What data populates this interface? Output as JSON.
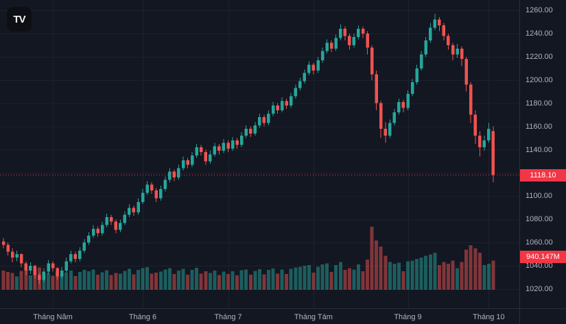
{
  "app": {
    "logo_text": "TV"
  },
  "axis": {
    "price_badge": "1118.10",
    "volume_badge": "940.147M",
    "price_labels": [
      "1260.00",
      "1240.00",
      "1220.00",
      "1200.00",
      "1180.00",
      "1160.00",
      "1140.00",
      "1100.00",
      "1080.00",
      "1060.00",
      "1040.00",
      "1020.00"
    ]
  },
  "chart_data": {
    "type": "candlestick",
    "title": "",
    "xlabel": "",
    "ylabel": "",
    "ylim": [
      1020,
      1260
    ],
    "grid_step": 20,
    "grid": true,
    "last_price": 1118.1,
    "last_volume_label": "940.147M",
    "x_ticks": [
      {
        "label": "Tháng Năm",
        "index": 11
      },
      {
        "label": "Tháng 6",
        "index": 31
      },
      {
        "label": "Tháng 7",
        "index": 50
      },
      {
        "label": "Tháng Tám",
        "index": 69
      },
      {
        "label": "Tháng 9",
        "index": 90
      },
      {
        "label": "Tháng 10",
        "index": 108
      }
    ],
    "colors": {
      "background": "#131722",
      "grid": "#1e222d",
      "axis_text": "#b2b5be",
      "up": "#26a69a",
      "down": "#ef5350",
      "vol_up": "rgba(38,166,154,0.5)",
      "vol_down": "rgba(239,83,80,0.5)",
      "last_price_line": "#f23645",
      "badge_bg": "#f23645"
    },
    "columns": [
      "open",
      "high",
      "low",
      "close",
      "volume_millions"
    ],
    "candles": [
      [
        1061,
        1064,
        1055,
        1058,
        620
      ],
      [
        1058,
        1060,
        1049,
        1052,
        580
      ],
      [
        1052,
        1055,
        1043,
        1047,
        540
      ],
      [
        1047,
        1053,
        1044,
        1050,
        430
      ],
      [
        1050,
        1051,
        1039,
        1042,
        610
      ],
      [
        1042,
        1044,
        1032,
        1036,
        650
      ],
      [
        1036,
        1043,
        1033,
        1040,
        470
      ],
      [
        1040,
        1041,
        1029,
        1032,
        690
      ],
      [
        1032,
        1034,
        1024,
        1028,
        720
      ],
      [
        1028,
        1038,
        1026,
        1035,
        510
      ],
      [
        1035,
        1045,
        1033,
        1042,
        540
      ],
      [
        1042,
        1044,
        1035,
        1038,
        460
      ],
      [
        1038,
        1039,
        1028,
        1031,
        590
      ],
      [
        1031,
        1039,
        1029,
        1036,
        480
      ],
      [
        1036,
        1047,
        1034,
        1044,
        560
      ],
      [
        1044,
        1053,
        1042,
        1050,
        620
      ],
      [
        1050,
        1052,
        1043,
        1046,
        450
      ],
      [
        1046,
        1056,
        1044,
        1053,
        580
      ],
      [
        1053,
        1063,
        1051,
        1060,
        640
      ],
      [
        1060,
        1069,
        1058,
        1066,
        600
      ],
      [
        1066,
        1075,
        1064,
        1072,
        660
      ],
      [
        1072,
        1074,
        1065,
        1068,
        490
      ],
      [
        1068,
        1078,
        1066,
        1075,
        570
      ],
      [
        1075,
        1085,
        1073,
        1082,
        630
      ],
      [
        1082,
        1084,
        1075,
        1078,
        480
      ],
      [
        1078,
        1080,
        1068,
        1071,
        550
      ],
      [
        1071,
        1080,
        1069,
        1077,
        520
      ],
      [
        1077,
        1087,
        1075,
        1084,
        610
      ],
      [
        1084,
        1093,
        1082,
        1090,
        680
      ],
      [
        1090,
        1092,
        1083,
        1086,
        500
      ],
      [
        1086,
        1098,
        1084,
        1095,
        640
      ],
      [
        1095,
        1106,
        1093,
        1103,
        700
      ],
      [
        1103,
        1113,
        1101,
        1110,
        730
      ],
      [
        1110,
        1112,
        1102,
        1105,
        520
      ],
      [
        1105,
        1107,
        1095,
        1098,
        560
      ],
      [
        1098,
        1109,
        1096,
        1106,
        590
      ],
      [
        1106,
        1117,
        1104,
        1114,
        660
      ],
      [
        1114,
        1124,
        1112,
        1121,
        700
      ],
      [
        1121,
        1123,
        1113,
        1116,
        510
      ],
      [
        1116,
        1127,
        1114,
        1124,
        620
      ],
      [
        1124,
        1134,
        1122,
        1131,
        680
      ],
      [
        1131,
        1133,
        1124,
        1127,
        490
      ],
      [
        1127,
        1138,
        1125,
        1135,
        650
      ],
      [
        1135,
        1145,
        1133,
        1142,
        710
      ],
      [
        1142,
        1144,
        1135,
        1138,
        520
      ],
      [
        1138,
        1140,
        1127,
        1130,
        600
      ],
      [
        1130,
        1139,
        1128,
        1136,
        540
      ],
      [
        1136,
        1146,
        1134,
        1143,
        620
      ],
      [
        1143,
        1145,
        1136,
        1139,
        480
      ],
      [
        1139,
        1149,
        1137,
        1146,
        590
      ],
      [
        1146,
        1148,
        1138,
        1141,
        510
      ],
      [
        1141,
        1151,
        1139,
        1148,
        600
      ],
      [
        1148,
        1150,
        1141,
        1144,
        470
      ],
      [
        1144,
        1155,
        1142,
        1152,
        630
      ],
      [
        1152,
        1161,
        1150,
        1158,
        660
      ],
      [
        1158,
        1160,
        1151,
        1154,
        490
      ],
      [
        1154,
        1164,
        1152,
        1161,
        610
      ],
      [
        1161,
        1171,
        1159,
        1168,
        670
      ],
      [
        1168,
        1170,
        1160,
        1163,
        500
      ],
      [
        1163,
        1174,
        1161,
        1171,
        640
      ],
      [
        1171,
        1181,
        1169,
        1178,
        690
      ],
      [
        1178,
        1180,
        1171,
        1174,
        520
      ],
      [
        1174,
        1185,
        1172,
        1182,
        660
      ],
      [
        1182,
        1184,
        1175,
        1178,
        510
      ],
      [
        1178,
        1189,
        1176,
        1186,
        680
      ],
      [
        1186,
        1196,
        1184,
        1193,
        720
      ],
      [
        1193,
        1202,
        1191,
        1199,
        750
      ],
      [
        1199,
        1209,
        1197,
        1206,
        780
      ],
      [
        1206,
        1216,
        1204,
        1213,
        800
      ],
      [
        1213,
        1215,
        1205,
        1208,
        560
      ],
      [
        1208,
        1220,
        1206,
        1217,
        740
      ],
      [
        1217,
        1228,
        1215,
        1225,
        820
      ],
      [
        1225,
        1235,
        1223,
        1232,
        860
      ],
      [
        1232,
        1234,
        1224,
        1227,
        580
      ],
      [
        1227,
        1239,
        1225,
        1236,
        800
      ],
      [
        1236,
        1248,
        1234,
        1244,
        900
      ],
      [
        1244,
        1246,
        1234,
        1238,
        640
      ],
      [
        1238,
        1240,
        1226,
        1230,
        700
      ],
      [
        1230,
        1240,
        1228,
        1237,
        660
      ],
      [
        1237,
        1247,
        1235,
        1244,
        820
      ],
      [
        1244,
        1246,
        1236,
        1240,
        600
      ],
      [
        1240,
        1242,
        1222,
        1228,
        980
      ],
      [
        1228,
        1230,
        1200,
        1205,
        2050
      ],
      [
        1205,
        1208,
        1174,
        1180,
        1600
      ],
      [
        1180,
        1182,
        1150,
        1158,
        1400
      ],
      [
        1158,
        1164,
        1146,
        1152,
        1100
      ],
      [
        1152,
        1166,
        1150,
        1163,
        900
      ],
      [
        1163,
        1175,
        1161,
        1172,
        850
      ],
      [
        1172,
        1184,
        1170,
        1181,
        880
      ],
      [
        1181,
        1183,
        1172,
        1176,
        600
      ],
      [
        1176,
        1191,
        1174,
        1188,
        920
      ],
      [
        1188,
        1201,
        1186,
        1198,
        950
      ],
      [
        1198,
        1213,
        1196,
        1210,
        1000
      ],
      [
        1210,
        1225,
        1208,
        1222,
        1050
      ],
      [
        1222,
        1237,
        1220,
        1234,
        1100
      ],
      [
        1234,
        1249,
        1232,
        1245,
        1150
      ],
      [
        1245,
        1257,
        1243,
        1252,
        1200
      ],
      [
        1252,
        1254,
        1242,
        1247,
        800
      ],
      [
        1247,
        1249,
        1234,
        1238,
        900
      ],
      [
        1238,
        1240,
        1226,
        1230,
        850
      ],
      [
        1230,
        1232,
        1217,
        1222,
        950
      ],
      [
        1222,
        1231,
        1219,
        1227,
        700
      ],
      [
        1227,
        1229,
        1212,
        1218,
        900
      ],
      [
        1218,
        1220,
        1190,
        1196,
        1300
      ],
      [
        1196,
        1198,
        1163,
        1170,
        1450
      ],
      [
        1170,
        1174,
        1145,
        1152,
        1350
      ],
      [
        1152,
        1156,
        1134,
        1142,
        1200
      ],
      [
        1142,
        1152,
        1139,
        1148,
        800
      ],
      [
        1148,
        1163,
        1146,
        1158,
        850
      ],
      [
        1156,
        1160,
        1112,
        1118.1,
        940.147
      ]
    ]
  }
}
